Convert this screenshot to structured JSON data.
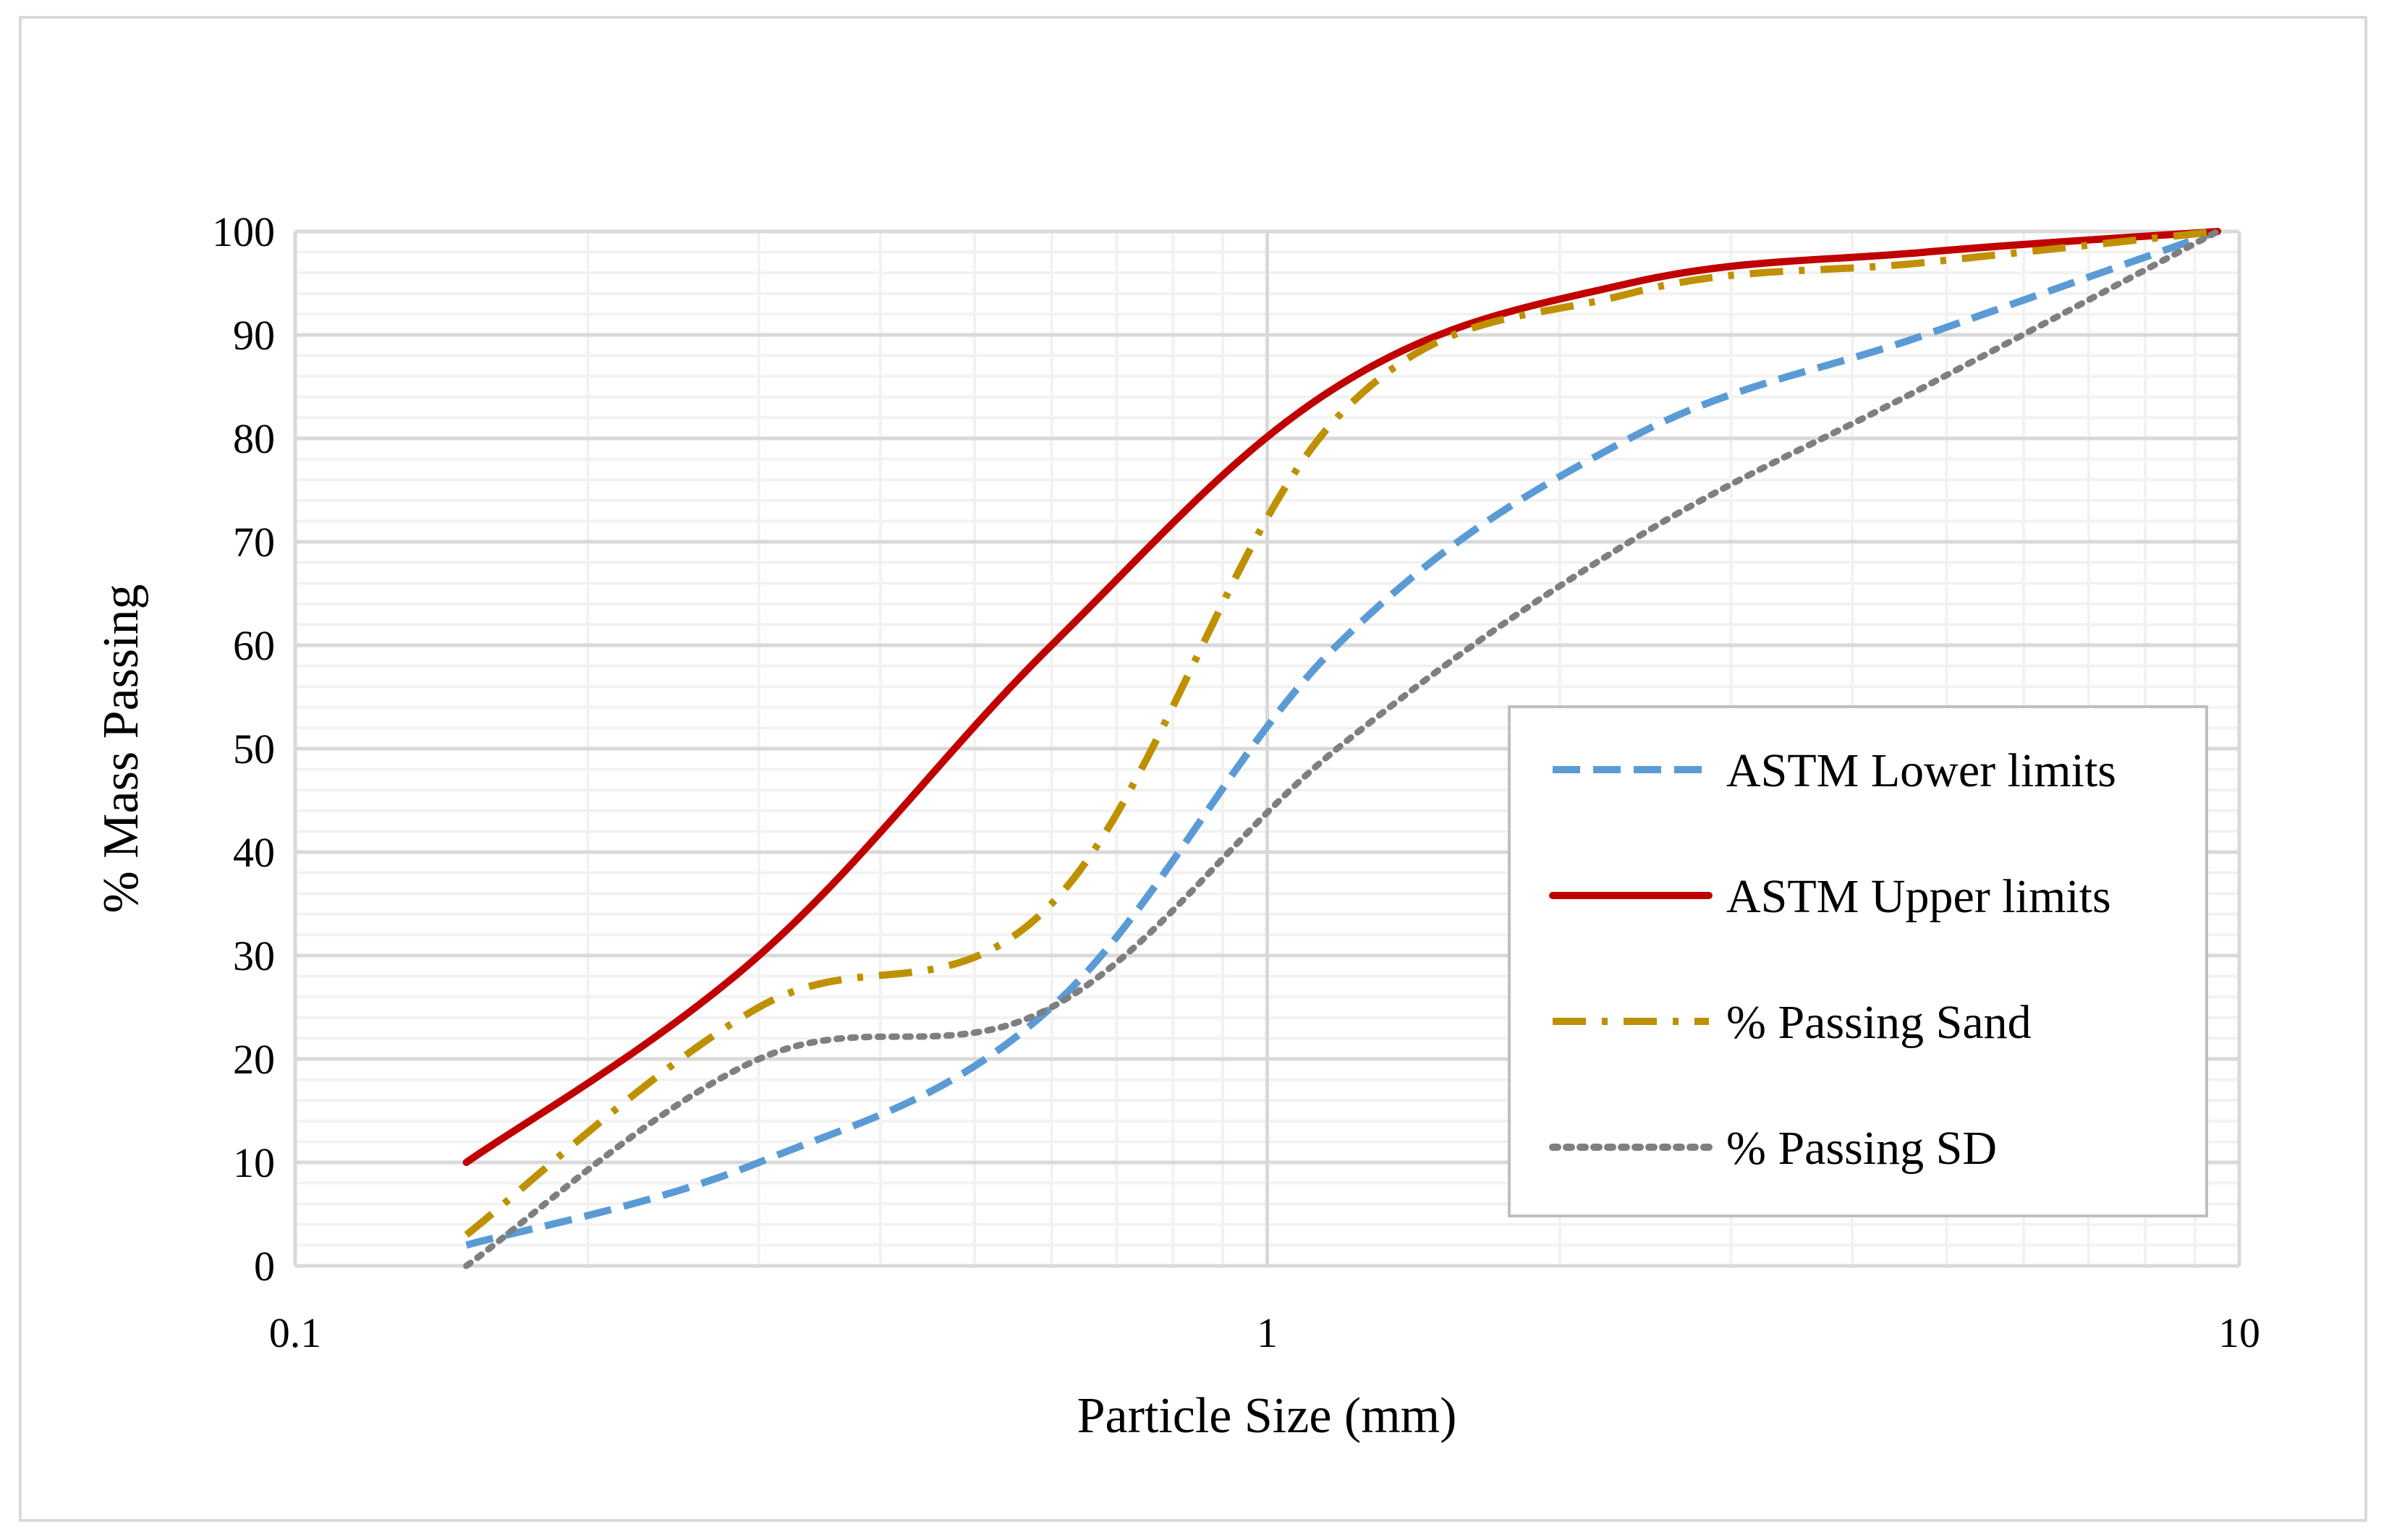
{
  "chart_data": {
    "type": "line",
    "title": "",
    "xlabel": "Particle Size (mm)",
    "ylabel": "% Mass Passing",
    "xscale": "log",
    "xlim": [
      0.1,
      10
    ],
    "ylim": [
      0,
      100
    ],
    "x_ticks": [
      {
        "value": 0.1,
        "label": "0.1"
      },
      {
        "value": 1,
        "label": "1"
      },
      {
        "value": 10,
        "label": "10"
      }
    ],
    "y_ticks": [
      {
        "value": 0,
        "label": "0"
      },
      {
        "value": 10,
        "label": "10"
      },
      {
        "value": 20,
        "label": "20"
      },
      {
        "value": 30,
        "label": "30"
      },
      {
        "value": 40,
        "label": "40"
      },
      {
        "value": 50,
        "label": "50"
      },
      {
        "value": 60,
        "label": "60"
      },
      {
        "value": 70,
        "label": "70"
      },
      {
        "value": 80,
        "label": "80"
      },
      {
        "value": 90,
        "label": "90"
      },
      {
        "value": 100,
        "label": "100"
      }
    ],
    "grid": true,
    "legend_position": "center-right",
    "series": [
      {
        "name": "ASTM Lower limits",
        "color": "#5b9bd5",
        "dash": "dash",
        "x": [
          0.15,
          0.3,
          0.6,
          1.18,
          2.36,
          4.75,
          9.5
        ],
        "y": [
          2,
          10,
          25,
          60,
          80,
          90,
          100
        ]
      },
      {
        "name": "ASTM Upper limits",
        "color": "#c00000",
        "dash": "solid",
        "x": [
          0.15,
          0.3,
          0.6,
          1.18,
          2.36,
          4.75,
          9.5
        ],
        "y": [
          10,
          30,
          60,
          85,
          95,
          98,
          100
        ]
      },
      {
        "name": "% Passing Sand",
        "color": "#bf9000",
        "dash": "dashdot",
        "x": [
          0.15,
          0.3,
          0.6,
          1.18,
          2.36,
          4.75,
          9.5
        ],
        "y": [
          3,
          25,
          35,
          82,
          94,
          97,
          100
        ]
      },
      {
        "name": "% Passing SD",
        "color": "#7f7f7f",
        "dash": "dot",
        "x": [
          0.15,
          0.3,
          0.6,
          1.18,
          2.36,
          4.75,
          9.5
        ],
        "y": [
          0,
          20,
          25,
          50,
          70,
          85,
          100
        ]
      }
    ]
  }
}
